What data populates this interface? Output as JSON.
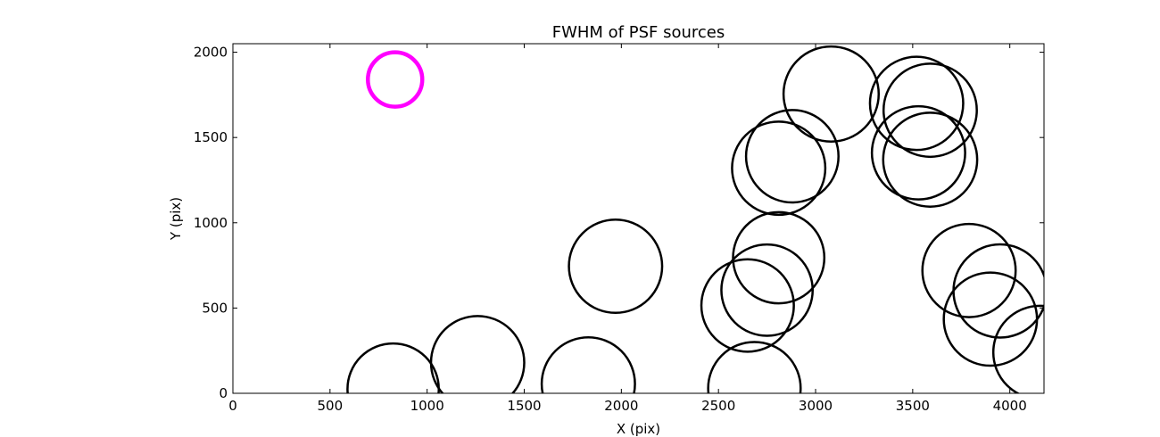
{
  "chart_data": {
    "type": "scatter",
    "title": "FWHM of PSF sources",
    "xlabel": "X (pix)",
    "ylabel": "Y (pix)",
    "xlim": [
      0,
      4176
    ],
    "ylim": [
      0,
      2050
    ],
    "xticks": [
      0,
      500,
      1000,
      1500,
      2000,
      2500,
      3000,
      3500,
      4000
    ],
    "yticks": [
      0,
      500,
      1000,
      1500,
      2000
    ],
    "grid": false,
    "reference_circle": {
      "x": 835,
      "y": 1840,
      "radius_x": 140,
      "color": "#ff00ff"
    },
    "sources": [
      {
        "x": 825,
        "y": 25,
        "radius_x": 235
      },
      {
        "x": 1260,
        "y": 180,
        "radius_x": 240
      },
      {
        "x": 1830,
        "y": 55,
        "radius_x": 240
      },
      {
        "x": 1970,
        "y": 745,
        "radius_x": 240
      },
      {
        "x": 2650,
        "y": 515,
        "radius_x": 238
      },
      {
        "x": 2685,
        "y": 30,
        "radius_x": 238
      },
      {
        "x": 2750,
        "y": 605,
        "radius_x": 235
      },
      {
        "x": 2810,
        "y": 795,
        "radius_x": 235
      },
      {
        "x": 2810,
        "y": 1320,
        "radius_x": 240
      },
      {
        "x": 2880,
        "y": 1390,
        "radius_x": 238
      },
      {
        "x": 3080,
        "y": 1755,
        "radius_x": 245
      },
      {
        "x": 3520,
        "y": 1700,
        "radius_x": 240
      },
      {
        "x": 3590,
        "y": 1660,
        "radius_x": 240
      },
      {
        "x": 3530,
        "y": 1410,
        "radius_x": 240
      },
      {
        "x": 3590,
        "y": 1370,
        "radius_x": 242
      },
      {
        "x": 3790,
        "y": 720,
        "radius_x": 240
      },
      {
        "x": 3900,
        "y": 435,
        "radius_x": 240
      },
      {
        "x": 3950,
        "y": 600,
        "radius_x": 240
      },
      {
        "x": 4155,
        "y": 240,
        "radius_x": 240
      }
    ],
    "colors": {
      "sources": "#000000",
      "reference": "#ff00ff",
      "axes": "#000000"
    }
  }
}
